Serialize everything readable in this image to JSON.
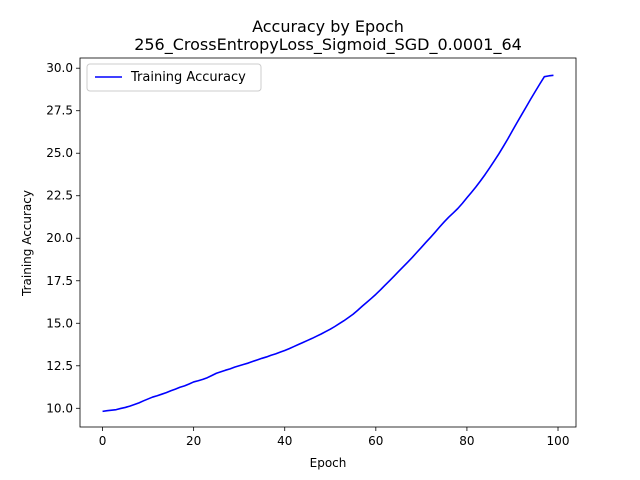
{
  "chart_data": {
    "type": "line",
    "title": "Accuracy by Epoch",
    "subtitle": "256_CrossEntropyLoss_Sigmoid_SGD_0.0001_64",
    "xlabel": "Epoch",
    "ylabel": "Training Accuracy",
    "xlim": [
      -4.95,
      103.95
    ],
    "ylim": [
      8.9,
      30.6
    ],
    "xticks": [
      0,
      20,
      40,
      60,
      80,
      100
    ],
    "yticks": [
      10.0,
      12.5,
      15.0,
      17.5,
      20.0,
      22.5,
      25.0,
      27.5,
      30.0
    ],
    "ytick_labels": [
      "10.0",
      "12.5",
      "15.0",
      "17.5",
      "20.0",
      "22.5",
      "25.0",
      "27.5",
      "30.0"
    ],
    "grid": false,
    "legend_position": "top-left",
    "series": [
      {
        "name": "Training Accuracy",
        "color": "#0000ff",
        "x": [
          0,
          1,
          2,
          3,
          4,
          5,
          6,
          7,
          8,
          9,
          10,
          11,
          12,
          13,
          14,
          15,
          16,
          17,
          18,
          19,
          20,
          21,
          22,
          23,
          24,
          25,
          26,
          27,
          28,
          29,
          30,
          31,
          32,
          33,
          34,
          35,
          36,
          37,
          38,
          39,
          40,
          41,
          42,
          43,
          44,
          45,
          46,
          47,
          48,
          49,
          50,
          51,
          52,
          53,
          54,
          55,
          56,
          57,
          58,
          59,
          60,
          61,
          62,
          63,
          64,
          65,
          66,
          67,
          68,
          69,
          70,
          71,
          72,
          73,
          74,
          75,
          76,
          77,
          78,
          79,
          80,
          81,
          82,
          83,
          84,
          85,
          86,
          87,
          88,
          89,
          90,
          91,
          92,
          93,
          94,
          95,
          96,
          97,
          98,
          99
        ],
        "y": [
          9.82,
          9.86,
          9.89,
          9.92,
          9.99,
          10.05,
          10.13,
          10.22,
          10.32,
          10.44,
          10.55,
          10.66,
          10.74,
          10.83,
          10.92,
          11.03,
          11.13,
          11.24,
          11.32,
          11.43,
          11.55,
          11.62,
          11.7,
          11.8,
          11.93,
          12.06,
          12.15,
          12.24,
          12.32,
          12.42,
          12.5,
          12.58,
          12.66,
          12.76,
          12.85,
          12.94,
          13.02,
          13.12,
          13.2,
          13.3,
          13.4,
          13.51,
          13.63,
          13.75,
          13.87,
          13.99,
          14.11,
          14.24,
          14.37,
          14.51,
          14.65,
          14.81,
          14.98,
          15.15,
          15.34,
          15.53,
          15.76,
          16.0,
          16.23,
          16.46,
          16.7,
          16.96,
          17.23,
          17.5,
          17.77,
          18.05,
          18.32,
          18.59,
          18.87,
          19.17,
          19.46,
          19.76,
          20.05,
          20.35,
          20.66,
          20.96,
          21.24,
          21.49,
          21.75,
          22.05,
          22.38,
          22.7,
          23.03,
          23.38,
          23.75,
          24.14,
          24.55,
          24.96,
          25.4,
          25.85,
          26.33,
          26.8,
          27.26,
          27.72,
          28.18,
          28.63,
          29.07,
          29.5,
          29.55,
          29.58
        ]
      }
    ]
  }
}
